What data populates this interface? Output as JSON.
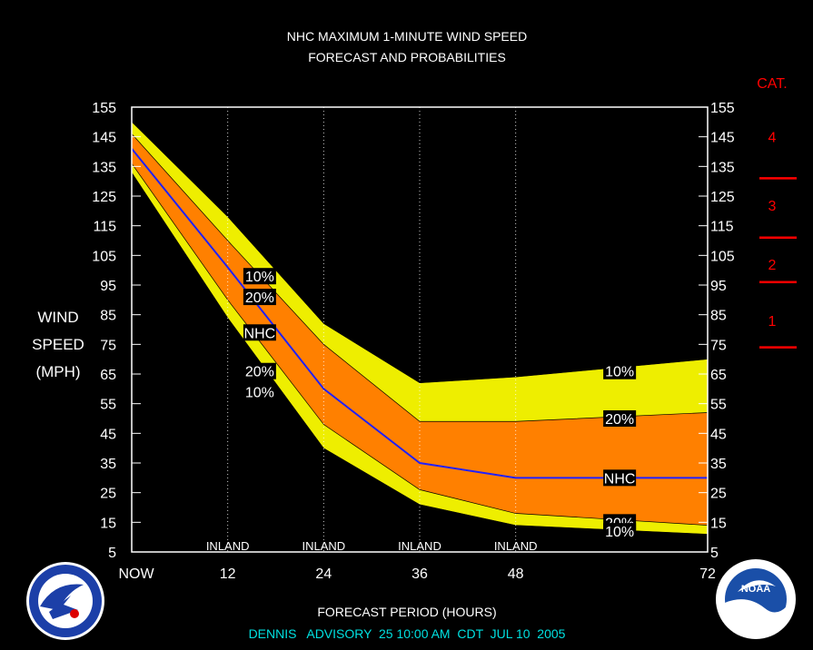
{
  "title_line1": "NHC MAXIMUM 1-MINUTE WIND SPEED",
  "title_line2": "FORECAST AND PROBABILITIES",
  "ylabel_lines": [
    "WIND",
    "SPEED",
    "(MPH)"
  ],
  "xlabel": "FORECAST PERIOD (HOURS)",
  "advisory": "DENNIS   ADVISORY  25 10:00 AM  CDT  JUL 10  2005",
  "category_header": "CAT.",
  "colors": {
    "outer_band": "#eeee00",
    "inner_band": "#ff8000",
    "nhc_line": "#2020ff",
    "category": "#ff0000",
    "advisory": "#00e0e0"
  },
  "chart_data": {
    "type": "area",
    "x": [
      0,
      12,
      24,
      36,
      48,
      72
    ],
    "x_tick_labels": [
      "NOW",
      "12",
      "24",
      "36",
      "48",
      "72"
    ],
    "xlim": [
      0,
      72
    ],
    "ylim": [
      5,
      155
    ],
    "y_ticks": [
      5,
      15,
      25,
      35,
      45,
      55,
      65,
      75,
      85,
      95,
      105,
      115,
      125,
      135,
      145,
      155
    ],
    "gridlines_x": [
      12,
      24,
      36,
      48
    ],
    "inland_labels": [
      {
        "x": 12,
        "text": "INLAND"
      },
      {
        "x": 24,
        "text": "INLAND"
      },
      {
        "x": 36,
        "text": "INLAND"
      },
      {
        "x": 48,
        "text": "INLAND"
      }
    ],
    "series": [
      {
        "name": "10%",
        "values": [
          150,
          118,
          82,
          62,
          64,
          70
        ]
      },
      {
        "name": "20%",
        "values": [
          146,
          110,
          75,
          49,
          49,
          52
        ]
      },
      {
        "name": "NHC",
        "values": [
          141,
          101,
          60,
          35,
          30,
          30
        ]
      },
      {
        "name": "20%",
        "values": [
          136,
          90,
          48,
          26,
          18,
          14
        ]
      },
      {
        "name": "10%",
        "values": [
          133,
          84,
          40,
          21,
          14,
          11
        ]
      }
    ],
    "band_labels": [
      {
        "text": "10%",
        "x": 16,
        "y": 98
      },
      {
        "text": "20%",
        "x": 16,
        "y": 91
      },
      {
        "text": "NHC",
        "x": 16,
        "y": 79
      },
      {
        "text": "20%",
        "x": 16,
        "y": 66
      },
      {
        "text": "10%",
        "x": 16,
        "y": 59
      },
      {
        "text": "10%",
        "x": 61,
        "y": 66
      },
      {
        "text": "20%",
        "x": 61,
        "y": 50
      },
      {
        "text": "NHC",
        "x": 61,
        "y": 30
      },
      {
        "text": "20%",
        "x": 61,
        "y": 15
      },
      {
        "text": "10%",
        "x": 61,
        "y": 12
      }
    ],
    "categories_scale": [
      {
        "label": "4",
        "y": 145
      },
      {
        "label": "3",
        "y": 122
      },
      {
        "label": "2",
        "y": 102
      },
      {
        "label": "1",
        "y": 83
      }
    ],
    "category_boundaries": [
      131,
      111,
      96,
      74
    ]
  }
}
